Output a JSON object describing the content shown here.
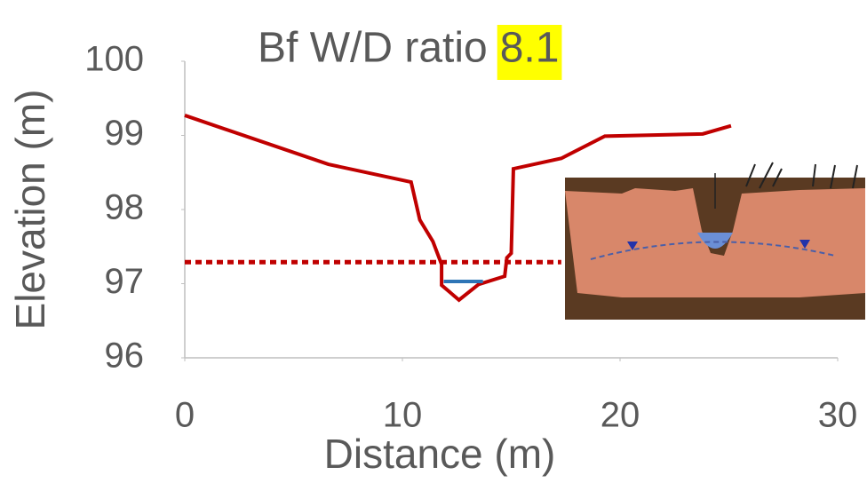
{
  "chart_data": {
    "type": "line",
    "title": "Bf W/D ratio",
    "title_highlight": "8.1",
    "xlabel": "Distance (m)",
    "ylabel": "Elevation (m)",
    "xlim": [
      0,
      30
    ],
    "ylim": [
      96,
      100
    ],
    "xticks": [
      0,
      10,
      20,
      30
    ],
    "yticks": [
      96,
      97,
      98,
      99,
      100
    ],
    "series": [
      {
        "color": "#c00000",
        "style": "solid",
        "x": [
          0,
          6.6,
          10.4,
          10.8,
          11.4,
          11.8,
          11.8,
          12.6,
          13.5,
          14.7,
          14.8,
          15.0,
          15.1,
          17.3,
          19.3,
          23.8,
          25.1
        ],
        "values": [
          99.27,
          98.61,
          98.37,
          97.86,
          97.57,
          97.26,
          96.98,
          96.78,
          96.99,
          97.1,
          97.35,
          97.41,
          98.55,
          98.69,
          98.99,
          99.02,
          99.13
        ]
      },
      {
        "color": "#c00000",
        "style": "dotted",
        "x": [
          0,
          17.3
        ],
        "values": [
          97.29,
          97.29
        ]
      },
      {
        "color": "#2e75b6",
        "style": "solid",
        "x": [
          11.9,
          13.7
        ],
        "values": [
          97.03,
          97.03
        ]
      }
    ]
  }
}
